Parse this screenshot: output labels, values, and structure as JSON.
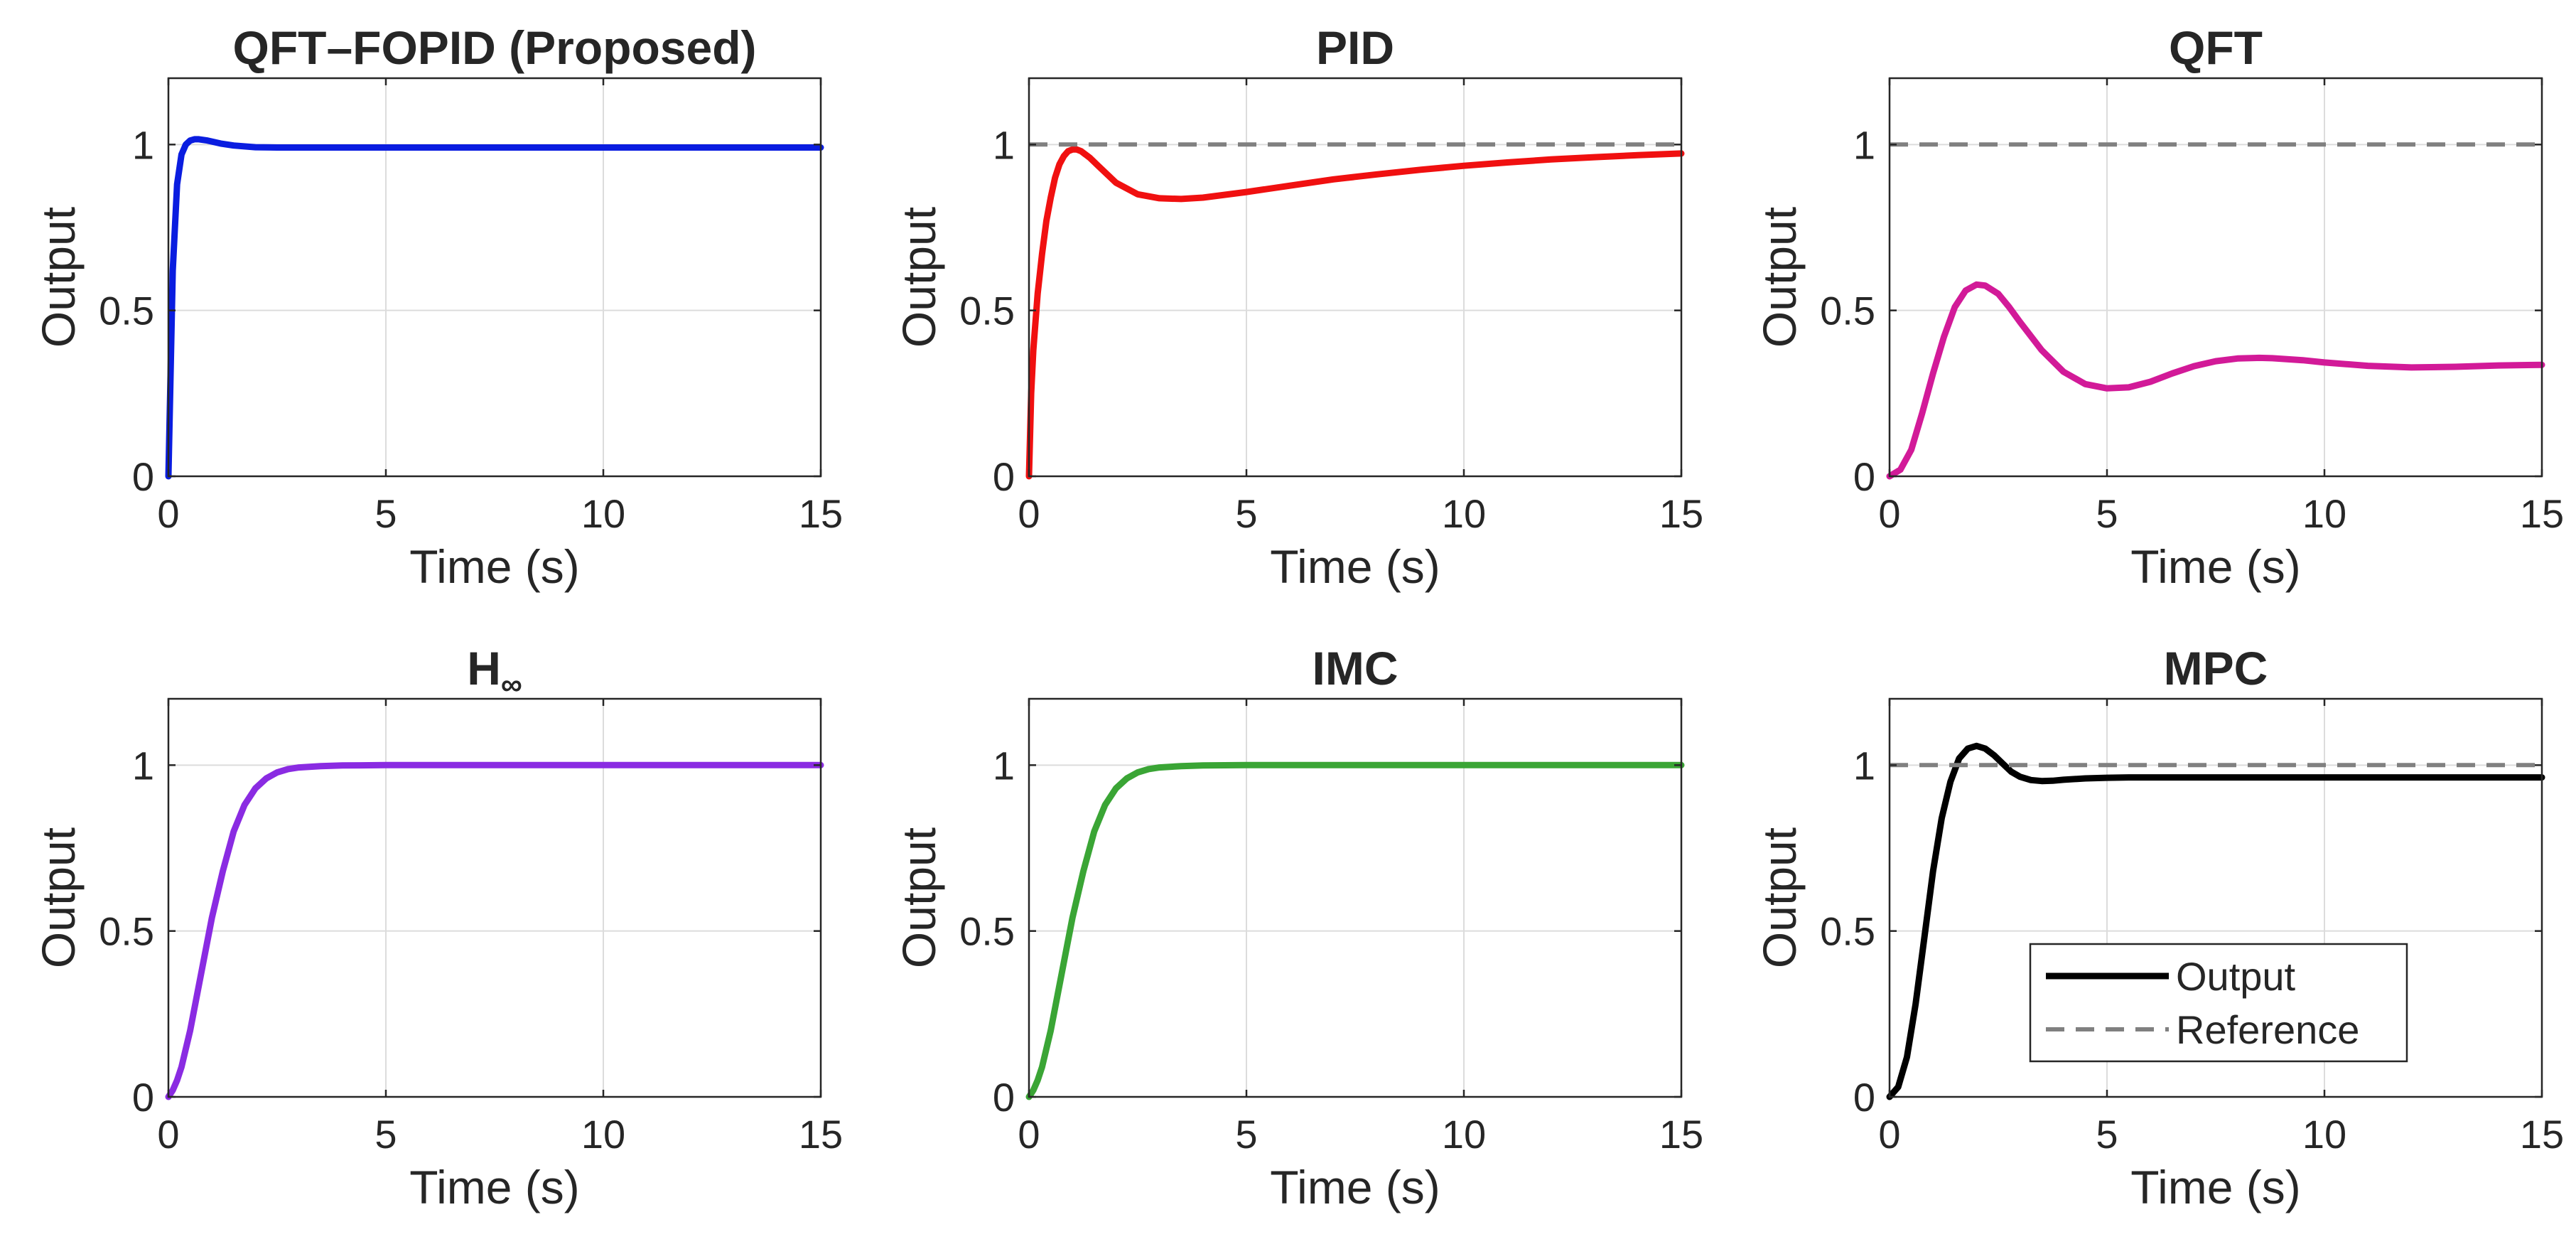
{
  "figure": {
    "background": "#ffffff",
    "grid": true
  },
  "chart_data": [
    {
      "type": "line",
      "title": "QFT–FOPID (Proposed)",
      "xlabel": "Time (s)",
      "ylabel": "Output",
      "xlim": [
        0,
        15
      ],
      "ylim": [
        0,
        1.2
      ],
      "xticks": [
        0,
        5,
        10,
        15
      ],
      "yticks": [
        0,
        0.5,
        1
      ],
      "ytick_labels": [
        "0",
        "0.5",
        "1"
      ],
      "series": [
        {
          "name": "Output",
          "color": "#0a1de0",
          "x": [
            0,
            0.1,
            0.2,
            0.3,
            0.4,
            0.5,
            0.6,
            0.7,
            0.8,
            0.9,
            1.0,
            1.2,
            1.5,
            2.0,
            2.5,
            3,
            4,
            5,
            6,
            8,
            10,
            12,
            15
          ],
          "y": [
            0,
            0.62,
            0.88,
            0.97,
            1.0,
            1.012,
            1.016,
            1.016,
            1.014,
            1.012,
            1.009,
            1.003,
            0.997,
            0.992,
            0.991,
            0.991,
            0.991,
            0.991,
            0.991,
            0.991,
            0.991,
            0.991,
            0.991
          ]
        }
      ]
    },
    {
      "type": "line",
      "title": "PID",
      "xlabel": "Time (s)",
      "ylabel": "Output",
      "xlim": [
        0,
        15
      ],
      "ylim": [
        0,
        1.2
      ],
      "xticks": [
        0,
        5,
        10,
        15
      ],
      "yticks": [
        0,
        0.5,
        1
      ],
      "ytick_labels": [
        "0",
        "0.5",
        "1"
      ],
      "series": [
        {
          "name": "Output",
          "color": "#f01010",
          "x": [
            0,
            0.05,
            0.1,
            0.2,
            0.3,
            0.4,
            0.5,
            0.6,
            0.7,
            0.8,
            0.9,
            1.0,
            1.1,
            1.2,
            1.4,
            1.6,
            2.0,
            2.5,
            3.0,
            3.5,
            4.0,
            5,
            6,
            7,
            8,
            9,
            10,
            11,
            12,
            13,
            14,
            15
          ],
          "y": [
            0,
            0.25,
            0.38,
            0.55,
            0.67,
            0.77,
            0.84,
            0.9,
            0.94,
            0.965,
            0.98,
            0.985,
            0.985,
            0.98,
            0.96,
            0.935,
            0.885,
            0.85,
            0.838,
            0.836,
            0.84,
            0.857,
            0.876,
            0.895,
            0.91,
            0.924,
            0.936,
            0.946,
            0.955,
            0.962,
            0.968,
            0.973
          ]
        },
        {
          "name": "Reference",
          "color": "#808080",
          "dashed": true,
          "x": [
            0,
            15
          ],
          "y": [
            1,
            1
          ]
        }
      ]
    },
    {
      "type": "line",
      "title": "QFT",
      "xlabel": "Time (s)",
      "ylabel": "Output",
      "xlim": [
        0,
        15
      ],
      "ylim": [
        0,
        1.2
      ],
      "xticks": [
        0,
        5,
        10,
        15
      ],
      "yticks": [
        0,
        0.5,
        1
      ],
      "ytick_labels": [
        "0",
        "0.5",
        "1"
      ],
      "series": [
        {
          "name": "Output",
          "color": "#d21a98",
          "x": [
            0,
            0.25,
            0.5,
            0.75,
            1.0,
            1.25,
            1.5,
            1.75,
            2.0,
            2.2,
            2.5,
            2.75,
            3.0,
            3.5,
            4.0,
            4.5,
            5.0,
            5.5,
            6.0,
            6.5,
            7.0,
            7.5,
            8.0,
            8.5,
            8.8,
            9.5,
            10,
            11,
            12,
            13,
            14,
            15
          ],
          "y": [
            0,
            0.02,
            0.08,
            0.19,
            0.31,
            0.42,
            0.51,
            0.56,
            0.578,
            0.575,
            0.55,
            0.51,
            0.465,
            0.38,
            0.315,
            0.278,
            0.265,
            0.268,
            0.285,
            0.31,
            0.332,
            0.347,
            0.355,
            0.357,
            0.356,
            0.35,
            0.343,
            0.333,
            0.328,
            0.33,
            0.334,
            0.336
          ]
        },
        {
          "name": "Reference",
          "color": "#808080",
          "dashed": true,
          "x": [
            0,
            15
          ],
          "y": [
            1,
            1
          ]
        }
      ]
    },
    {
      "type": "line",
      "title": "H",
      "title_subscript": "∞",
      "xlabel": "Time (s)",
      "ylabel": "Output",
      "xlim": [
        0,
        15
      ],
      "ylim": [
        0,
        1.2
      ],
      "xticks": [
        0,
        5,
        10,
        15
      ],
      "yticks": [
        0,
        0.5,
        1
      ],
      "ytick_labels": [
        "0",
        "0.5",
        "1"
      ],
      "series": [
        {
          "name": "Output",
          "color": "#8a2be2",
          "x": [
            0,
            0.1,
            0.2,
            0.3,
            0.5,
            0.75,
            1.0,
            1.25,
            1.5,
            1.75,
            2.0,
            2.25,
            2.5,
            2.75,
            3.0,
            3.5,
            4.0,
            5,
            6,
            8,
            10,
            12,
            15
          ],
          "y": [
            0,
            0.02,
            0.05,
            0.09,
            0.2,
            0.37,
            0.54,
            0.68,
            0.8,
            0.88,
            0.93,
            0.96,
            0.978,
            0.988,
            0.993,
            0.997,
            0.999,
            1.0,
            1.0,
            1.0,
            1.0,
            1.0,
            1.0
          ]
        }
      ]
    },
    {
      "type": "line",
      "title": "IMC",
      "xlabel": "Time (s)",
      "ylabel": "Output",
      "xlim": [
        0,
        15
      ],
      "ylim": [
        0,
        1.2
      ],
      "xticks": [
        0,
        5,
        10,
        15
      ],
      "yticks": [
        0,
        0.5,
        1
      ],
      "ytick_labels": [
        "0",
        "0.5",
        "1"
      ],
      "series": [
        {
          "name": "Output",
          "color": "#3aa535",
          "x": [
            0,
            0.1,
            0.2,
            0.3,
            0.5,
            0.75,
            1.0,
            1.25,
            1.5,
            1.75,
            2.0,
            2.25,
            2.5,
            2.75,
            3.0,
            3.5,
            4.0,
            5,
            6,
            8,
            10,
            12,
            15
          ],
          "y": [
            0,
            0.02,
            0.05,
            0.09,
            0.2,
            0.37,
            0.54,
            0.68,
            0.8,
            0.88,
            0.93,
            0.96,
            0.978,
            0.988,
            0.993,
            0.997,
            0.999,
            1.0,
            1.0,
            1.0,
            1.0,
            1.0,
            1.0
          ]
        }
      ]
    },
    {
      "type": "line",
      "title": "MPC",
      "xlabel": "Time (s)",
      "ylabel": "Output",
      "xlim": [
        0,
        15
      ],
      "ylim": [
        0,
        1.2
      ],
      "xticks": [
        0,
        5,
        10,
        15
      ],
      "yticks": [
        0,
        0.5,
        1
      ],
      "ytick_labels": [
        "0",
        "0.5",
        "1"
      ],
      "legend": {
        "placement": "bottom-right",
        "entries": [
          "Output",
          "Reference"
        ]
      },
      "series": [
        {
          "name": "Output",
          "color": "#000000",
          "x": [
            0,
            0.2,
            0.4,
            0.6,
            0.8,
            1.0,
            1.2,
            1.4,
            1.6,
            1.8,
            2.0,
            2.2,
            2.4,
            2.6,
            2.8,
            3.0,
            3.25,
            3.5,
            3.75,
            4.0,
            4.5,
            5.0,
            5.5,
            6,
            8,
            10,
            12,
            15
          ],
          "y": [
            0,
            0.03,
            0.12,
            0.28,
            0.48,
            0.68,
            0.84,
            0.95,
            1.02,
            1.05,
            1.058,
            1.05,
            1.03,
            1.005,
            0.98,
            0.965,
            0.955,
            0.952,
            0.953,
            0.956,
            0.96,
            0.962,
            0.963,
            0.963,
            0.963,
            0.963,
            0.963,
            0.963
          ]
        },
        {
          "name": "Reference",
          "color": "#808080",
          "dashed": true,
          "x": [
            0,
            15
          ],
          "y": [
            1,
            1
          ]
        }
      ]
    }
  ]
}
